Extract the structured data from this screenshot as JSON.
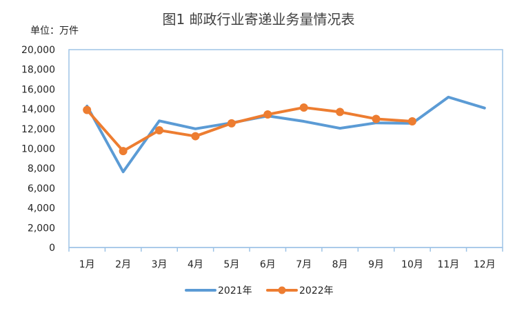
{
  "chart_data": {
    "type": "line",
    "title": "图1  邮政行业寄递业务量情况表",
    "unit_label": "单位：万件",
    "categories": [
      "1月",
      "2月",
      "3月",
      "4月",
      "5月",
      "6月",
      "7月",
      "8月",
      "9月",
      "10月",
      "11月",
      "12月"
    ],
    "y_ticks": [
      "0",
      "2,000",
      "4,000",
      "6,000",
      "8,000",
      "10,000",
      "12,000",
      "14,000",
      "16,000",
      "18,000",
      "20,000"
    ],
    "ylim": [
      0,
      20000
    ],
    "grid": false,
    "legend_position": "bottom",
    "series": [
      {
        "name": "2021年",
        "color": "#5B9BD5",
        "marker": false,
        "values": [
          14300,
          7650,
          12800,
          12000,
          12600,
          13300,
          12750,
          12050,
          12600,
          12550,
          15200,
          14100
        ]
      },
      {
        "name": "2022年",
        "color": "#ED7D31",
        "marker": true,
        "values": [
          13900,
          9750,
          11850,
          11250,
          12550,
          13450,
          14150,
          13700,
          13000,
          12750,
          null,
          null
        ]
      }
    ]
  }
}
